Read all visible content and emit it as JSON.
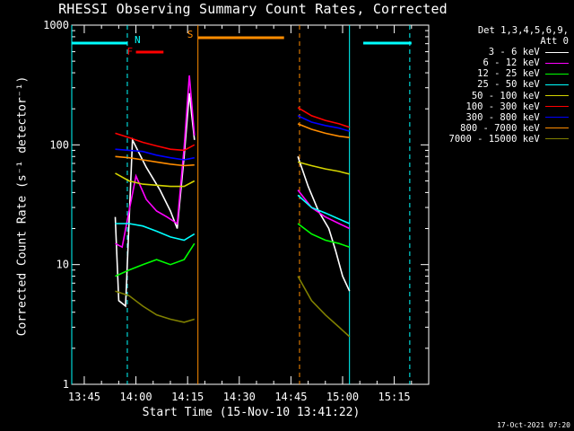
{
  "chart_data": {
    "type": "line",
    "title": "RHESSI Observing Summary Count Rates, Corrected",
    "xlabel": "Start Time (15-Nov-10 13:41:22)",
    "ylabel": "Corrected Count Rate (s⁻¹ detector⁻¹)",
    "y_scale": "log",
    "ylim": [
      1,
      1000
    ],
    "y_ticks": [
      "1",
      "10",
      "100",
      "1000"
    ],
    "xlim": [
      "13:41:22",
      "15:25:00"
    ],
    "x_ticks": [
      "13:45",
      "14:00",
      "14:15",
      "14:30",
      "14:45",
      "15:00",
      "15:15"
    ],
    "legend_header": [
      "Det 1,3,4,5,6,9,",
      "Att 0"
    ],
    "legend_placement": "top-right outside",
    "flags": [
      {
        "label": "N",
        "color": "#00ffff",
        "intervals": [
          [
            "13:41:22",
            "13:57:30"
          ],
          [
            "15:06:00",
            "15:20:00"
          ]
        ]
      },
      {
        "label": "F",
        "color": "#ff0000",
        "intervals": [
          [
            "14:00:00",
            "14:08:00"
          ]
        ]
      },
      {
        "label": "S",
        "color": "#ff8c00",
        "intervals": [
          [
            "14:18:00",
            "14:43:00"
          ]
        ]
      }
    ],
    "time_markers": [
      {
        "time": "13:57:30",
        "color": "#00ffff",
        "style": "dashed"
      },
      {
        "time": "14:18:00",
        "color": "#ff8c00",
        "style": "solid"
      },
      {
        "time": "14:47:30",
        "color": "#ff8c00",
        "style": "dashed"
      },
      {
        "time": "15:02:00",
        "color": "#00ffff",
        "style": "solid"
      },
      {
        "time": "15:19:30",
        "color": "#00ffff",
        "style": "dashed"
      },
      {
        "time": "13:41:22",
        "color": "#00ffff",
        "style": "solid"
      }
    ],
    "series": [
      {
        "name": "3 - 6 keV",
        "color": "#ffffff",
        "points": [
          [
            "13:54:00",
            25
          ],
          [
            "13:55:00",
            5
          ],
          [
            "13:57:00",
            4.5
          ],
          [
            "13:59:00",
            110
          ],
          [
            "14:03:00",
            65
          ],
          [
            "14:07:00",
            42
          ],
          [
            "14:10:00",
            28
          ],
          [
            "14:12:00",
            20
          ],
          [
            "14:14:00",
            80
          ],
          [
            "14:15:30",
            270
          ],
          [
            "14:17:00",
            110
          ],
          [
            "14:47:00",
            80
          ],
          [
            "14:50:00",
            45
          ],
          [
            "14:53:00",
            28
          ],
          [
            "14:56:00",
            20
          ],
          [
            "14:58:00",
            13
          ],
          [
            "15:00:00",
            8
          ],
          [
            "15:02:00",
            6
          ]
        ]
      },
      {
        "name": "6 - 12 keV",
        "color": "#ff00ff",
        "points": [
          [
            "13:54:00",
            15
          ],
          [
            "13:56:00",
            14
          ],
          [
            "13:58:00",
            28
          ],
          [
            "14:00:00",
            55
          ],
          [
            "14:03:00",
            35
          ],
          [
            "14:06:00",
            28
          ],
          [
            "14:09:00",
            25
          ],
          [
            "14:12:00",
            22
          ],
          [
            "14:14:00",
            95
          ],
          [
            "14:15:30",
            380
          ],
          [
            "14:17:00",
            120
          ],
          [
            "14:47:00",
            42
          ],
          [
            "14:51:00",
            30
          ],
          [
            "14:55:00",
            25
          ],
          [
            "14:59:00",
            22
          ],
          [
            "15:02:00",
            20
          ]
        ]
      },
      {
        "name": "12 - 25 keV",
        "color": "#00ff00",
        "points": [
          [
            "13:54:00",
            8
          ],
          [
            "13:58:00",
            9
          ],
          [
            "14:02:00",
            10
          ],
          [
            "14:06:00",
            11
          ],
          [
            "14:10:00",
            10
          ],
          [
            "14:14:00",
            11
          ],
          [
            "14:17:00",
            15
          ],
          [
            "14:47:00",
            22
          ],
          [
            "14:51:00",
            18
          ],
          [
            "14:55:00",
            16
          ],
          [
            "14:59:00",
            15
          ],
          [
            "15:02:00",
            14
          ]
        ]
      },
      {
        "name": "25 - 50 keV",
        "color": "#00ffff",
        "points": [
          [
            "13:54:00",
            22
          ],
          [
            "13:58:00",
            22
          ],
          [
            "14:02:00",
            21
          ],
          [
            "14:06:00",
            19
          ],
          [
            "14:10:00",
            17
          ],
          [
            "14:14:00",
            16
          ],
          [
            "14:17:00",
            18
          ],
          [
            "14:47:00",
            38
          ],
          [
            "14:51:00",
            30
          ],
          [
            "14:55:00",
            27
          ],
          [
            "14:59:00",
            24
          ],
          [
            "15:02:00",
            22
          ]
        ]
      },
      {
        "name": "50 - 100 keV",
        "color": "#d4d400",
        "points": [
          [
            "13:54:00",
            58
          ],
          [
            "13:58:00",
            50
          ],
          [
            "14:02:00",
            47
          ],
          [
            "14:06:00",
            46
          ],
          [
            "14:10:00",
            45
          ],
          [
            "14:14:00",
            45
          ],
          [
            "14:17:00",
            50
          ],
          [
            "14:47:00",
            72
          ],
          [
            "14:51:00",
            67
          ],
          [
            "14:55:00",
            63
          ],
          [
            "14:59:00",
            60
          ],
          [
            "15:02:00",
            57
          ]
        ]
      },
      {
        "name": "100 - 300 keV",
        "color": "#ff0000",
        "points": [
          [
            "13:54:00",
            125
          ],
          [
            "13:58:00",
            115
          ],
          [
            "14:02:00",
            105
          ],
          [
            "14:06:00",
            98
          ],
          [
            "14:10:00",
            92
          ],
          [
            "14:14:00",
            90
          ],
          [
            "14:17:00",
            100
          ],
          [
            "14:47:00",
            205
          ],
          [
            "14:51:00",
            175
          ],
          [
            "14:55:00",
            160
          ],
          [
            "14:59:00",
            150
          ],
          [
            "15:02:00",
            140
          ]
        ]
      },
      {
        "name": "300 - 800 keV",
        "color": "#0000ff",
        "points": [
          [
            "13:54:00",
            92
          ],
          [
            "13:58:00",
            90
          ],
          [
            "14:02:00",
            88
          ],
          [
            "14:06:00",
            82
          ],
          [
            "14:10:00",
            78
          ],
          [
            "14:14:00",
            75
          ],
          [
            "14:17:00",
            78
          ],
          [
            "14:47:00",
            175
          ],
          [
            "14:51:00",
            155
          ],
          [
            "14:55:00",
            145
          ],
          [
            "14:59:00",
            138
          ],
          [
            "15:02:00",
            130
          ]
        ]
      },
      {
        "name": "800 - 7000 keV",
        "color": "#ff8c00",
        "points": [
          [
            "13:54:00",
            80
          ],
          [
            "13:58:00",
            78
          ],
          [
            "14:02:00",
            75
          ],
          [
            "14:06:00",
            72
          ],
          [
            "14:10:00",
            69
          ],
          [
            "14:14:00",
            67
          ],
          [
            "14:17:00",
            68
          ],
          [
            "14:47:00",
            150
          ],
          [
            "14:51:00",
            135
          ],
          [
            "14:55:00",
            125
          ],
          [
            "14:59:00",
            118
          ],
          [
            "15:02:00",
            115
          ]
        ]
      },
      {
        "name": "7000 - 15000 keV",
        "color": "#808000",
        "points": [
          [
            "13:54:00",
            6
          ],
          [
            "13:58:00",
            5.5
          ],
          [
            "14:02:00",
            4.5
          ],
          [
            "14:06:00",
            3.8
          ],
          [
            "14:10:00",
            3.5
          ],
          [
            "14:14:00",
            3.3
          ],
          [
            "14:17:00",
            3.5
          ],
          [
            "14:47:00",
            8
          ],
          [
            "14:51:00",
            5
          ],
          [
            "14:55:00",
            3.8
          ],
          [
            "14:59:00",
            3
          ],
          [
            "15:02:00",
            2.5
          ]
        ]
      }
    ]
  },
  "footer": {
    "timestamp": "17-Oct-2021 07:20"
  }
}
